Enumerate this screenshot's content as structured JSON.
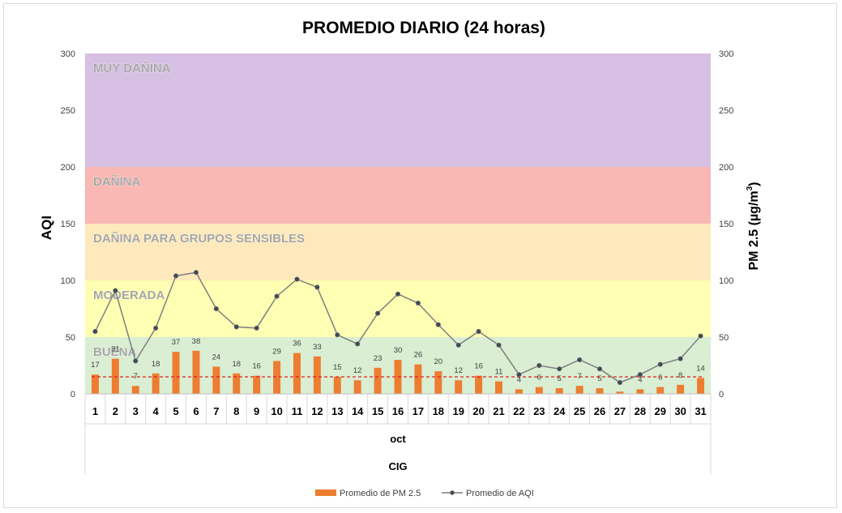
{
  "chart_data": {
    "type": "bar",
    "title": "PROMEDIO DIARIO (24 horas)",
    "ylabel": "AQI",
    "y2label_main": "PM 2.5 (µg/m",
    "y2label_sup": "3",
    "y2label_close": ")",
    "ylim": [
      0,
      300
    ],
    "y2lim": [
      0,
      300
    ],
    "yticks": [
      0,
      50,
      100,
      150,
      200,
      250,
      300
    ],
    "categories": [
      "1",
      "2",
      "3",
      "4",
      "5",
      "6",
      "7",
      "8",
      "9",
      "10",
      "11",
      "12",
      "13",
      "14",
      "15",
      "16",
      "17",
      "18",
      "19",
      "20",
      "21",
      "22",
      "23",
      "24",
      "25",
      "26",
      "27",
      "28",
      "29",
      "30",
      "31"
    ],
    "xlabel_month": "oct",
    "xlabel_site": "CIG",
    "series": [
      {
        "name": "Promedio de PM 2.5",
        "kind": "bar",
        "color": "#ed7d31",
        "values": [
          17,
          31,
          7,
          18,
          37,
          38,
          24,
          18,
          16,
          29,
          36,
          33,
          15,
          12,
          23,
          30,
          26,
          20,
          12,
          16,
          11,
          4,
          6,
          5,
          7,
          5,
          2,
          4,
          6,
          8,
          14
        ],
        "labels": [
          "17",
          "31",
          "7",
          "18",
          "37",
          "38",
          "24",
          "18",
          "16",
          "29",
          "36",
          "33",
          "15",
          "12",
          "23",
          "30",
          "26",
          "20",
          "12",
          "16",
          "11",
          "4",
          "6",
          "5",
          "7",
          "5",
          "",
          "4",
          "6",
          "8",
          "14"
        ]
      },
      {
        "name": "Promedio de AQI",
        "kind": "line",
        "color": "#7f7f7f",
        "values": [
          55,
          91,
          29,
          58,
          104,
          107,
          75,
          59,
          58,
          86,
          101,
          94,
          52,
          44,
          71,
          88,
          80,
          61,
          43,
          55,
          43,
          17,
          25,
          22,
          30,
          22,
          10,
          17,
          26,
          31,
          51
        ]
      }
    ],
    "reference_line": {
      "value": 15,
      "color": "#e02020"
    },
    "bands": [
      {
        "label": "BUENA",
        "from": 0,
        "to": 50,
        "color": "#d9eed3"
      },
      {
        "label": "MODERADA",
        "from": 50,
        "to": 100,
        "color": "#ffffb3"
      },
      {
        "label": "DAÑINA PARA GRUPOS SENSIBLES",
        "from": 100,
        "to": 150,
        "color": "#fde9bc"
      },
      {
        "label": "DAÑINA",
        "from": 150,
        "to": 200,
        "color": "#f9b8b3"
      },
      {
        "label": "MUY DAÑINA",
        "from": 200,
        "to": 300,
        "color": "#d7c0e3"
      }
    ],
    "grid": false,
    "legend_position": "bottom"
  }
}
